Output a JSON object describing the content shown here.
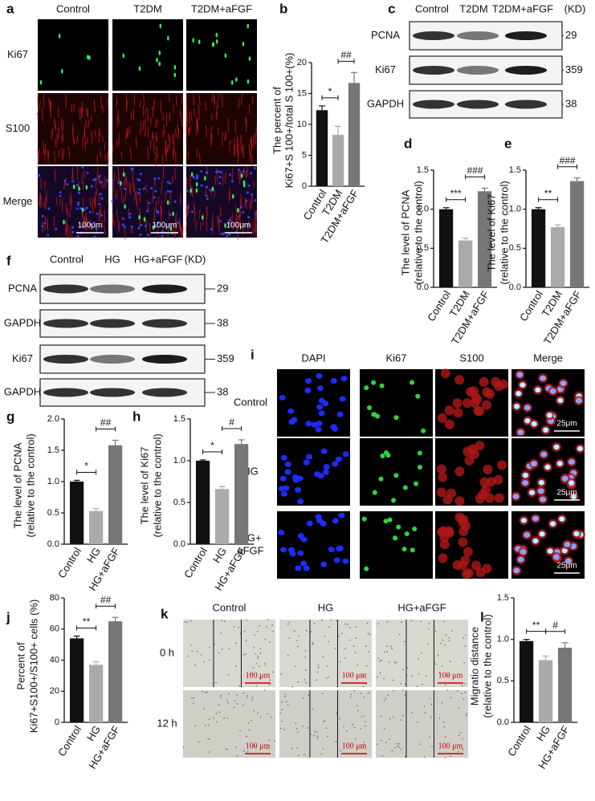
{
  "panels": {
    "a": {
      "label": "a",
      "columns": [
        "Control",
        "T2DM",
        "T2DM+aFGF"
      ],
      "rows": [
        "Ki67",
        "S100",
        "Merge"
      ],
      "scale_bar": "100μm"
    },
    "c": {
      "label": "c",
      "columns": [
        "Control",
        "T2DM",
        "T2DM+aFGF"
      ],
      "unit": "(KD)",
      "rows": [
        {
          "name": "PCNA",
          "kd": 29
        },
        {
          "name": "Ki67",
          "kd": 359
        },
        {
          "name": "GAPDH",
          "kd": 38
        }
      ]
    },
    "f": {
      "label": "f",
      "columns": [
        "Control",
        "HG",
        "HG+aFGF"
      ],
      "unit": "(KD)",
      "rows": [
        {
          "name": "PCNA",
          "kd": 29
        },
        {
          "name": "GAPDH",
          "kd": 38
        },
        {
          "name": "Ki67",
          "kd": 359
        },
        {
          "name": "GAPDH",
          "kd": 38
        }
      ]
    },
    "i": {
      "label": "i",
      "columns": [
        "DAPI",
        "Ki67",
        "S100",
        "Merge"
      ],
      "rows": [
        [
          "Control"
        ],
        [
          "HG"
        ],
        [
          "HG+",
          "aFGF"
        ]
      ],
      "scale_bar": "25μm"
    },
    "k": {
      "label": "k",
      "columns": [
        "Control",
        "HG",
        "HG+aFGF"
      ],
      "rows": [
        "0 h",
        "12 h"
      ],
      "scale_bar": "100 μm"
    }
  },
  "chart_data": [
    {
      "type": "bar",
      "label": "b",
      "ylabel": [
        "The percent of",
        "Ki67+S 100+/total S 100+(%)"
      ],
      "categories": [
        "Control",
        "T2DM",
        "T2DM+aFGF"
      ],
      "values": [
        12.3,
        8.3,
        16.7
      ],
      "errors": [
        0.7,
        1.4,
        1.7
      ],
      "colors": [
        "#111111",
        "#aaaaaa",
        "#777777"
      ],
      "ylim": [
        0,
        20
      ],
      "yticks": [
        0,
        5,
        10,
        15,
        20
      ],
      "annotations": [
        "*",
        "##"
      ]
    },
    {
      "type": "bar",
      "label": "d",
      "ylabel": [
        "The level of PCNA",
        "(relative to the control)"
      ],
      "categories": [
        "Control",
        "T2DM",
        "T2DM+aFGF"
      ],
      "values": [
        1.0,
        0.6,
        1.23
      ],
      "errors": [
        0.02,
        0.03,
        0.04
      ],
      "colors": [
        "#111111",
        "#aaaaaa",
        "#777777"
      ],
      "ylim": [
        0,
        1.5
      ],
      "yticks": [
        {
          "value": 0,
          "label": "0.0"
        },
        0.5,
        {
          "value": 1,
          "label": "1.0"
        },
        1.5
      ],
      "annotations": [
        "***",
        "###"
      ]
    },
    {
      "type": "bar",
      "label": "e",
      "ylabel": [
        "The level of Ki67",
        "(relative to the control)"
      ],
      "categories": [
        "Control",
        "T2DM",
        "T2DM+aFGF"
      ],
      "values": [
        1.0,
        0.77,
        1.36
      ],
      "errors": [
        0.02,
        0.03,
        0.04
      ],
      "colors": [
        "#111111",
        "#aaaaaa",
        "#777777"
      ],
      "ylim": [
        0,
        1.5
      ],
      "yticks": [
        {
          "value": 0,
          "label": "0.0"
        },
        0.5,
        {
          "value": 1,
          "label": "1.0"
        },
        1.5
      ],
      "annotations": [
        "**",
        "###"
      ]
    },
    {
      "type": "bar",
      "label": "g",
      "ylabel": [
        "The level of PCNA",
        "(relative to the control)"
      ],
      "categories": [
        "Control",
        "HG",
        "HG+aFGF"
      ],
      "values": [
        1.0,
        0.53,
        1.58
      ],
      "errors": [
        0.02,
        0.04,
        0.08
      ],
      "colors": [
        "#111111",
        "#aaaaaa",
        "#777777"
      ],
      "ylim": [
        0,
        2
      ],
      "yticks": [
        {
          "value": 0,
          "label": "0.0"
        },
        0.5,
        {
          "value": 1,
          "label": "1.0"
        },
        1.5,
        {
          "value": 2,
          "label": "2.0"
        }
      ],
      "annotations": [
        "*",
        "##"
      ]
    },
    {
      "type": "bar",
      "label": "h",
      "ylabel": [
        "The level of Ki67",
        "(relative to the control)"
      ],
      "categories": [
        "Control",
        "HG",
        "HG+aFGF"
      ],
      "values": [
        1.0,
        0.66,
        1.2
      ],
      "errors": [
        0.01,
        0.03,
        0.05
      ],
      "colors": [
        "#111111",
        "#aaaaaa",
        "#777777"
      ],
      "ylim": [
        0,
        1.5
      ],
      "yticks": [
        {
          "value": 0,
          "label": "0.0"
        },
        0.5,
        {
          "value": 1,
          "label": "1.0"
        },
        1.5
      ],
      "annotations": [
        "*",
        "#"
      ]
    },
    {
      "type": "bar",
      "label": "j",
      "ylabel": [
        "Percent of",
        "Ki67+S100+/S100+ cells (%)"
      ],
      "categories": [
        "Control",
        "HG",
        "HG+aFGF"
      ],
      "values": [
        54,
        37,
        65
      ],
      "errors": [
        1.5,
        2,
        2.5
      ],
      "colors": [
        "#111111",
        "#aaaaaa",
        "#777777"
      ],
      "ylim": [
        0,
        80
      ],
      "yticks": [
        0,
        20,
        40,
        60,
        80
      ],
      "annotations": [
        "**",
        "##"
      ]
    },
    {
      "type": "bar",
      "label": "l",
      "ylabel": [
        "Migratio distance",
        "(relative to the control)"
      ],
      "categories": [
        "Control",
        "HG",
        "HG+aFGF"
      ],
      "values": [
        0.98,
        0.75,
        0.9
      ],
      "errors": [
        0.02,
        0.05,
        0.06
      ],
      "colors": [
        "#111111",
        "#aaaaaa",
        "#777777"
      ],
      "ylim": [
        0,
        1.5
      ],
      "yticks": [
        {
          "value": 0,
          "label": "0.0"
        },
        0.5,
        {
          "value": 1,
          "label": "1.0"
        },
        1.5
      ],
      "annotations": [
        "**",
        "#"
      ]
    }
  ]
}
